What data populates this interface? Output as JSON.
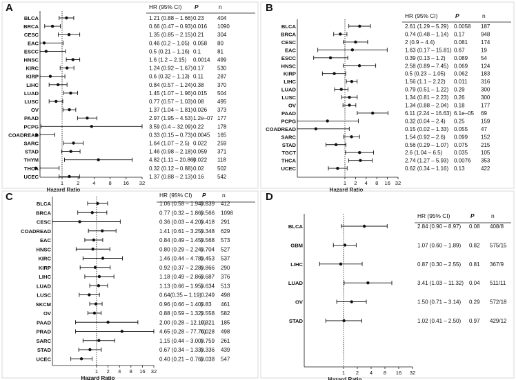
{
  "chart_data": [
    {
      "type": "forest",
      "letter": "A",
      "xscale": "log2",
      "xlim": [
        0.25,
        32
      ],
      "ticks": [
        "1",
        "2",
        "4",
        "8",
        "16",
        "32"
      ],
      "xlabel": "Hazard Ratio",
      "reference_line": 1,
      "columns": [
        "HR (95% CI)",
        "P",
        "n"
      ],
      "rows": [
        {
          "label": "BLCA",
          "hr": 1.21,
          "lo": 0.88,
          "hi": 1.66,
          "ci": "1.21 (0.88 – 1.66)",
          "p": "0.23",
          "n": "404"
        },
        {
          "label": "BRCA",
          "hr": 0.66,
          "lo": 0.47,
          "hi": 0.93,
          "ci": "0.66 (0.47 – 0.93)",
          "p": "0.016",
          "n": "1090"
        },
        {
          "label": "CESC",
          "hr": 1.35,
          "lo": 0.85,
          "hi": 2.15,
          "ci": "1.35 (0.85 – 2.15)",
          "p": "0.21",
          "n": "304"
        },
        {
          "label": "EAC",
          "hr": 0.46,
          "lo": 0.2,
          "hi": 1.05,
          "ci": "0.46 (0.2 – 1.05)",
          "p": "0.058",
          "n": "80"
        },
        {
          "label": "ESCC",
          "hr": 0.5,
          "lo": 0.21,
          "hi": 1.16,
          "ci": "0.5 (0.21 – 1.16)",
          "p": "0.1",
          "n": "81"
        },
        {
          "label": "HNSC",
          "hr": 1.6,
          "lo": 1.2,
          "hi": 2.15,
          "ci": "1.6 (1.2 – 2.15)",
          "p": "0.0014",
          "n": "499"
        },
        {
          "label": "KIRC",
          "hr": 1.24,
          "lo": 0.92,
          "hi": 1.67,
          "ci": "1.24 (0.92 – 1.67)",
          "p": "0.17",
          "n": "530"
        },
        {
          "label": "KIRP",
          "hr": 0.6,
          "lo": 0.32,
          "hi": 1.13,
          "ci": "0.6 (0.32 – 1.13)",
          "p": "0.11",
          "n": "287"
        },
        {
          "label": "LIHC",
          "hr": 0.84,
          "lo": 0.57,
          "hi": 1.24,
          "ci": "0.84 (0.57 – 1.24)",
          "p": "0.38",
          "n": "370"
        },
        {
          "label": "LUAD",
          "hr": 1.45,
          "lo": 1.07,
          "hi": 1.96,
          "ci": "1.45 (1.07 – 1.96)",
          "p": "0.015",
          "n": "504"
        },
        {
          "label": "LUSC",
          "hr": 0.77,
          "lo": 0.57,
          "hi": 1.03,
          "ci": "0.77 (0.57 – 1.03)",
          "p": "0.08",
          "n": "495"
        },
        {
          "label": "OV",
          "hr": 1.37,
          "lo": 1.04,
          "hi": 1.81,
          "ci": "1.37 (1.04 – 1.81)",
          "p": "0.026",
          "n": "373"
        },
        {
          "label": "PAAD",
          "hr": 2.97,
          "lo": 1.95,
          "hi": 4.53,
          "ci": "2.97 (1.95 – 4.53)",
          "p": "1.2e–07",
          "n": "177"
        },
        {
          "label": "PCPG",
          "hr": 3.59,
          "lo": 0.4,
          "hi": 32.09,
          "ci": "3.59 (0.4 – 32.09)",
          "p": "0.22",
          "n": "178"
        },
        {
          "label": "COADREAD",
          "hr": 0.33,
          "lo": 0.15,
          "hi": 0.73,
          "ci": "0.33 (0.15 – 0.73)",
          "p": "0.0045",
          "n": "165"
        },
        {
          "label": "SARC",
          "hr": 1.64,
          "lo": 1.07,
          "hi": 2.5,
          "ci": "1.64 (1.07 – 2.5)",
          "p": "0.022",
          "n": "259"
        },
        {
          "label": "STAD",
          "hr": 1.46,
          "lo": 0.98,
          "hi": 2.18,
          "ci": "1.46 (0.98 – 2.18)",
          "p": "0.059",
          "n": "371"
        },
        {
          "label": "THYM",
          "hr": 4.82,
          "lo": 1.11,
          "hi": 20.86,
          "ci": "4.82 (1.11 – 20.86)",
          "p": "0.022",
          "n": "118"
        },
        {
          "label": "THCA",
          "hr": 0.32,
          "lo": 0.12,
          "hi": 0.88,
          "ci": "0.32 (0.12 – 0.88)",
          "p": "0.02",
          "n": "502"
        },
        {
          "label": "UCEC",
          "hr": 1.37,
          "lo": 0.88,
          "hi": 2.13,
          "ci": "1.37 (0.88 – 2.13)",
          "p": "0.16",
          "n": "542"
        }
      ]
    },
    {
      "type": "forest",
      "letter": "B",
      "xscale": "log2",
      "xlim": [
        0.06,
        32
      ],
      "ticks": [
        "1",
        "2",
        "4",
        "8",
        "16",
        "32"
      ],
      "xlabel": "Hazard Ratio",
      "reference_line": 1,
      "columns": [
        "HR (95% CI)",
        "P",
        "n"
      ],
      "rows": [
        {
          "label": "BLCA",
          "hr": 2.61,
          "lo": 1.29,
          "hi": 5.29,
          "ci": "2.61 (1.29 – 5.29)",
          "p": "0.0058",
          "n": "187"
        },
        {
          "label": "BRCA",
          "hr": 0.74,
          "lo": 0.48,
          "hi": 1.14,
          "ci": "0.74 (0.48 – 1.14)",
          "p": "0.17",
          "n": "948"
        },
        {
          "label": "CESC",
          "hr": 2,
          "lo": 0.9,
          "hi": 4.4,
          "ci": "2 (0.9 – 4.4)",
          "p": "0.081",
          "n": "174"
        },
        {
          "label": "EAC",
          "hr": 1.63,
          "lo": 0.17,
          "hi": 15.81,
          "ci": "1.63 (0.17 – 15.81)",
          "p": "0.67",
          "n": "19"
        },
        {
          "label": "ESCC",
          "hr": 0.39,
          "lo": 0.13,
          "hi": 1.2,
          "ci": "0.39 (0.13 – 1.2)",
          "p": "0.089",
          "n": "54"
        },
        {
          "label": "HNSC",
          "hr": 2.58,
          "lo": 0.89,
          "hi": 7.45,
          "ci": "2.58 (0.89 – 7.45)",
          "p": "0.069",
          "n": "124"
        },
        {
          "label": "KIRP",
          "hr": 0.5,
          "lo": 0.23,
          "hi": 1.05,
          "ci": "0.5 (0.23 – 1.05)",
          "p": "0.062",
          "n": "183"
        },
        {
          "label": "LIHC",
          "hr": 1.56,
          "lo": 1.1,
          "hi": 2.22,
          "ci": "1.56 (1.1 – 2.22)",
          "p": "0.011",
          "n": "316"
        },
        {
          "label": "LUAD",
          "hr": 0.79,
          "lo": 0.51,
          "hi": 1.22,
          "ci": "0.79 (0.51 – 1.22)",
          "p": "0.29",
          "n": "300"
        },
        {
          "label": "LUSC",
          "hr": 1.34,
          "lo": 0.81,
          "hi": 2.23,
          "ci": "1.34 (0.81 – 2.23)",
          "p": "0.26",
          "n": "300"
        },
        {
          "label": "OV",
          "hr": 1.34,
          "lo": 0.88,
          "hi": 2.04,
          "ci": "1.34 (0.88 – 2.04)",
          "p": "0.18",
          "n": "177"
        },
        {
          "label": "PAAD",
          "hr": 6.11,
          "lo": 2.24,
          "hi": 16.63,
          "ci": "6.11 (2.24 – 16.63)",
          "p": "6.1e–05",
          "n": "69"
        },
        {
          "label": "PCPG",
          "hr": 0.32,
          "lo": 0.04,
          "hi": 2.4,
          "ci": "0.32 (0.04 – 2.4)",
          "p": "0.25",
          "n": "159"
        },
        {
          "label": "COADREAD",
          "hr": 0.15,
          "lo": 0.02,
          "hi": 1.33,
          "ci": "0.15 (0.02 – 1.33)",
          "p": "0.055",
          "n": "47"
        },
        {
          "label": "SARC",
          "hr": 1.54,
          "lo": 0.92,
          "hi": 2.6,
          "ci": "1.54 (0.92 – 2.6)",
          "p": "0.099",
          "n": "152"
        },
        {
          "label": "STAD",
          "hr": 0.56,
          "lo": 0.29,
          "hi": 1.07,
          "ci": "0.56 (0.29 – 1.07)",
          "p": "0.075",
          "n": "215"
        },
        {
          "label": "TGCT",
          "hr": 2.6,
          "lo": 1.04,
          "hi": 6.5,
          "ci": "2.6 (1.04 – 6.5)",
          "p": "0.035",
          "n": "105"
        },
        {
          "label": "THCA",
          "hr": 2.74,
          "lo": 1.27,
          "hi": 5.93,
          "ci": "2.74 (1.27 – 5.93)",
          "p": "0.0076",
          "n": "353"
        },
        {
          "label": "UCEC",
          "hr": 0.62,
          "lo": 0.34,
          "hi": 1.16,
          "ci": "0.62 (0.34 – 1.16)",
          "p": "0.13",
          "n": "422"
        }
      ]
    },
    {
      "type": "forest",
      "letter": "C",
      "xscale": "log2",
      "xlim": [
        0.03,
        32
      ],
      "ticks": [
        "1",
        "2",
        "4",
        "8",
        "16",
        "32"
      ],
      "xlabel": "Hazard Ratio",
      "reference_line": 1,
      "columns": [
        "HR (95% CI)",
        "P",
        "n"
      ],
      "rows": [
        {
          "label": "BLCA",
          "hr": 1.06,
          "lo": 0.58,
          "hi": 1.94,
          "ci": "1.06 (0.58 – 1.94)",
          "p": "0.839",
          "n": "412"
        },
        {
          "label": "BRCA",
          "hr": 0.77,
          "lo": 0.32,
          "hi": 1.86,
          "ci": "0.77 (0.32 – 1.86)",
          "p": "0.566",
          "n": "1098"
        },
        {
          "label": "CESC",
          "hr": 0.36,
          "lo": 0.03,
          "hi": 4.2,
          "ci": "0.36 (0.03 – 4.20)",
          "p": "0.418",
          "n": "291"
        },
        {
          "label": "COADREAD",
          "hr": 1.41,
          "lo": 0.61,
          "hi": 3.25,
          "ci": "1.41 (0.61 – 3.25)",
          "p": "0.348",
          "n": "629"
        },
        {
          "label": "EAC",
          "hr": 0.84,
          "lo": 0.49,
          "hi": 1.45,
          "ci": "0.84 (0.49 – 1.45)",
          "p": "0.568",
          "n": "573"
        },
        {
          "label": "HNSC",
          "hr": 0.8,
          "lo": 0.29,
          "hi": 2.24,
          "ci": "0.80 (0.29 – 2.24)",
          "p": "0.704",
          "n": "527"
        },
        {
          "label": "KIRC",
          "hr": 1.46,
          "lo": 0.44,
          "hi": 4.78,
          "ci": "1.46 (0.44 – 4.78)",
          "p": "0.453",
          "n": "537"
        },
        {
          "label": "KIRP",
          "hr": 0.92,
          "lo": 0.37,
          "hi": 2.28,
          "ci": "0.92 (0.37 – 2.28)",
          "p": "0.866",
          "n": "290"
        },
        {
          "label": "LIHC",
          "hr": 1.18,
          "lo": 0.49,
          "hi": 2.86,
          "ci": "1.18 (0.49 – 2.86)",
          "p": "0.687",
          "n": "376"
        },
        {
          "label": "LUAD",
          "hr": 1.13,
          "lo": 0.66,
          "hi": 1.95,
          "ci": "1.13 (0.66 – 1.95)",
          "p": "0.634",
          "n": "513"
        },
        {
          "label": "LUSC",
          "hr": 0.64,
          "lo": 0.35,
          "hi": 1.19,
          "ci": "0.64(0.35 – 1.19)",
          "p": "0.249",
          "n": "498"
        },
        {
          "label": "SKCM",
          "hr": 0.96,
          "lo": 0.66,
          "hi": 1.4,
          "ci": "0.96 (0.66 – 1.40)",
          "p": "0.83",
          "n": "461"
        },
        {
          "label": "OV",
          "hr": 0.88,
          "lo": 0.59,
          "hi": 1.32,
          "ci": "0.88 (0.59 – 1.32)",
          "p": "0.558",
          "n": "582"
        },
        {
          "label": "PAAD",
          "hr": 2,
          "lo": 0.28,
          "hi": 12.19,
          "ci": "2.00 (0.28 – 12.19)",
          "p": "0.321",
          "n": "185"
        },
        {
          "label": "PRAD",
          "hr": 4.65,
          "lo": 0.28,
          "hi": 77.76,
          "ci": "4.65 (0.28 – 77.76)",
          "p": "0.028",
          "n": "498"
        },
        {
          "label": "SARC",
          "hr": 1.15,
          "lo": 0.44,
          "hi": 3,
          "ci": "1.15 (0.44 – 3.00)",
          "p": "0.759",
          "n": "261"
        },
        {
          "label": "STAD",
          "hr": 0.67,
          "lo": 0.34,
          "hi": 1.33,
          "ci": "0.67 (0.34 – 1.33)",
          "p": "0.336",
          "n": "439"
        },
        {
          "label": "UCEC",
          "hr": 0.4,
          "lo": 0.21,
          "hi": 0.76,
          "ci": "0.40 (0.21 – 0.76)",
          "p": "0.038",
          "n": "547"
        }
      ]
    },
    {
      "type": "forest",
      "letter": "D",
      "xscale": "log2",
      "xlim": [
        0.25,
        32
      ],
      "ticks": [
        "1",
        "2",
        "4",
        "8",
        "16",
        "32"
      ],
      "xlabel": "Hazard Ratio",
      "reference_line": 1,
      "columns": [
        "HR (95% CI)",
        "P",
        "n"
      ],
      "rows": [
        {
          "label": "BLCA",
          "hr": 2.84,
          "lo": 0.9,
          "hi": 8.97,
          "ci": "2.84 (0.90 – 8.97)",
          "p": "0.08",
          "n": "408/8"
        },
        {
          "label": "GBM",
          "hr": 1.07,
          "lo": 0.6,
          "hi": 1.89,
          "ci": "1.07 (0.60 – 1.89)",
          "p": "0.82",
          "n": "575/15"
        },
        {
          "label": "LIHC",
          "hr": 0.87,
          "lo": 0.3,
          "hi": 2.55,
          "ci": "0.87 (0.30 – 2.55)",
          "p": "0.81",
          "n": "367/9"
        },
        {
          "label": "LUAD",
          "hr": 3.41,
          "lo": 1.03,
          "hi": 11.32,
          "ci": "3.41 (1.03 – 11.32)",
          "p": "0.04",
          "n": "511/11"
        },
        {
          "label": "OV",
          "hr": 1.5,
          "lo": 0.71,
          "hi": 3.14,
          "ci": "1.50 (0.71 – 3.14)",
          "p": "0.29",
          "n": "572/18"
        },
        {
          "label": "STAD",
          "hr": 1.02,
          "lo": 0.41,
          "hi": 2.5,
          "ci": "1.02 (0.41 – 2.50)",
          "p": "0.97",
          "n": "429/12"
        }
      ]
    }
  ]
}
